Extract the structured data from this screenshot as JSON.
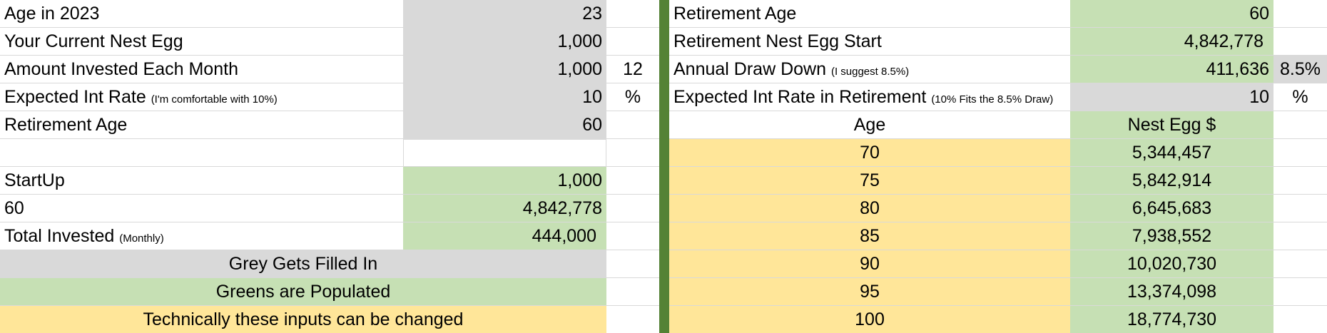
{
  "left": {
    "age_label": "Age in 2023",
    "age_value": "23",
    "nest_label": "Your Current Nest Egg",
    "nest_value": "1,000",
    "monthly_label": "Amount Invested Each Month",
    "monthly_value": "1,000",
    "months_value": "12",
    "rate_label": "Expected Int Rate",
    "rate_note": "(I'm comfortable with 10%)",
    "rate_value": "10",
    "rate_unit": "%",
    "ret_age_label": "Retirement Age",
    "ret_age_value": "60",
    "startup_label": "StartUp",
    "startup_value": "1,000",
    "age60_label": "60",
    "age60_value": "4,842,778",
    "total_label": "Total Invested",
    "total_note": "(Monthly)",
    "total_value": "444,000"
  },
  "legend": {
    "grey": "Grey Gets Filled In",
    "green": "Greens are Populated",
    "yellow": "Technically these inputs can be changed"
  },
  "right": {
    "ret_age_label": "Retirement Age",
    "ret_age_value": "60",
    "start_label": "Retirement Nest Egg Start",
    "start_value": "4,842,778",
    "draw_label": "Annual Draw Down",
    "draw_note": "(I suggest 8.5%)",
    "draw_value": "411,636",
    "draw_pct": "8.5%",
    "rate_label": "Expected Int Rate in Retirement",
    "rate_note": "(10% Fits the 8.5% Draw)",
    "rate_value": "10",
    "rate_unit": "%",
    "col_age": "Age",
    "col_nest": "Nest Egg $",
    "rows": [
      {
        "age": "70",
        "nest": "5,344,457"
      },
      {
        "age": "75",
        "nest": "5,842,914"
      },
      {
        "age": "80",
        "nest": "6,645,683"
      },
      {
        "age": "85",
        "nest": "7,938,552"
      },
      {
        "age": "90",
        "nest": "10,020,730"
      },
      {
        "age": "95",
        "nest": "13,374,098"
      },
      {
        "age": "100",
        "nest": "18,774,730"
      }
    ]
  },
  "colors": {
    "grey": "#d9d9d9",
    "green": "#c6e0b4",
    "yellow": "#ffe699",
    "divider": "#548235"
  }
}
